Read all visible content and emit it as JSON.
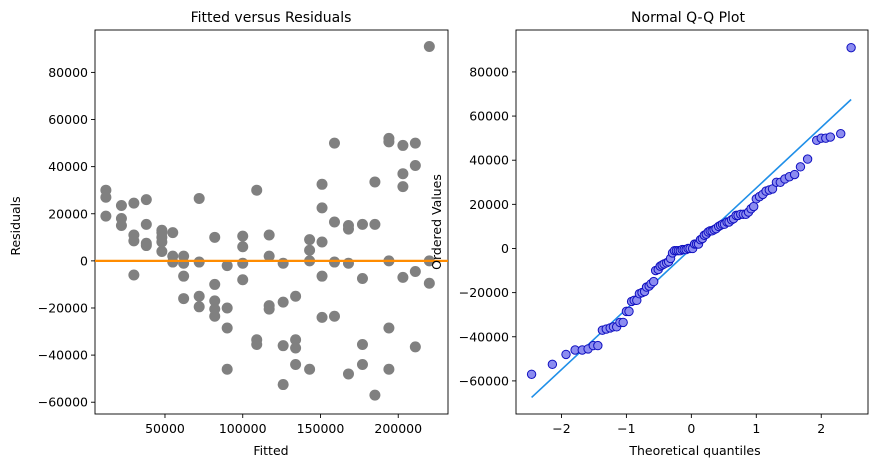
{
  "chart_data": [
    {
      "type": "scatter",
      "title": "Fitted versus Residuals",
      "xlabel": "Fitted",
      "ylabel": "Residuals",
      "xlim": [
        5000,
        232000
      ],
      "ylim": [
        -65000,
        98000
      ],
      "xticks": [
        50000,
        100000,
        150000,
        200000
      ],
      "xtick_labels": [
        "50000",
        "100000",
        "150000",
        "200000"
      ],
      "yticks": [
        -60000,
        -40000,
        -20000,
        0,
        20000,
        40000,
        60000,
        80000
      ],
      "ytick_labels": [
        "−60000",
        "−40000",
        "−20000",
        "0",
        "20000",
        "40000",
        "60000",
        "80000"
      ],
      "grid": false,
      "point_color": "#808080",
      "reference_line": {
        "y": 0,
        "color": "#ff8c00"
      },
      "points": [
        [
          12000,
          30000
        ],
        [
          12000,
          27000
        ],
        [
          12000,
          19000
        ],
        [
          22000,
          23500
        ],
        [
          22000,
          18000
        ],
        [
          22000,
          15000
        ],
        [
          30000,
          24500
        ],
        [
          30000,
          11000
        ],
        [
          30000,
          8500
        ],
        [
          30000,
          -6000
        ],
        [
          38000,
          26000
        ],
        [
          38000,
          15500
        ],
        [
          38000,
          7500
        ],
        [
          38000,
          6500
        ],
        [
          48000,
          13000
        ],
        [
          48000,
          12000
        ],
        [
          48000,
          10000
        ],
        [
          48000,
          8000
        ],
        [
          48000,
          4000
        ],
        [
          55000,
          12000
        ],
        [
          55000,
          2000
        ],
        [
          55000,
          -500
        ],
        [
          62000,
          2000
        ],
        [
          62000,
          -1000
        ],
        [
          62000,
          -6500
        ],
        [
          62000,
          -16000
        ],
        [
          72000,
          26500
        ],
        [
          72000,
          -500
        ],
        [
          72000,
          -15000
        ],
        [
          72000,
          -19500
        ],
        [
          82000,
          10000
        ],
        [
          82000,
          -10000
        ],
        [
          82000,
          -17000
        ],
        [
          82000,
          -20500
        ],
        [
          82000,
          -23500
        ],
        [
          90000,
          -2000
        ],
        [
          90000,
          -20000
        ],
        [
          90000,
          -28500
        ],
        [
          90000,
          -46000
        ],
        [
          100000,
          10500
        ],
        [
          100000,
          6000
        ],
        [
          100000,
          -1000
        ],
        [
          100000,
          -8000
        ],
        [
          109000,
          30000
        ],
        [
          109000,
          -33500
        ],
        [
          109000,
          -35500
        ],
        [
          117000,
          11000
        ],
        [
          117000,
          2000
        ],
        [
          117000,
          -19000
        ],
        [
          117000,
          -20500
        ],
        [
          126000,
          -1000
        ],
        [
          126000,
          -17500
        ],
        [
          126000,
          -36000
        ],
        [
          126000,
          -52500
        ],
        [
          134000,
          -15000
        ],
        [
          134000,
          -33500
        ],
        [
          134000,
          -37000
        ],
        [
          134000,
          -44000
        ],
        [
          143000,
          9000
        ],
        [
          143000,
          4500
        ],
        [
          143000,
          0
        ],
        [
          143000,
          -46000
        ],
        [
          151000,
          32500
        ],
        [
          151000,
          22500
        ],
        [
          151000,
          8000
        ],
        [
          151000,
          -6500
        ],
        [
          151000,
          -24000
        ],
        [
          159000,
          50000
        ],
        [
          159000,
          16500
        ],
        [
          159000,
          -500
        ],
        [
          159000,
          -23500
        ],
        [
          168000,
          15000
        ],
        [
          168000,
          13500
        ],
        [
          168000,
          -1000
        ],
        [
          168000,
          -48000
        ],
        [
          177000,
          15500
        ],
        [
          177000,
          -7500
        ],
        [
          177000,
          -35500
        ],
        [
          177000,
          -44000
        ],
        [
          185000,
          33500
        ],
        [
          185000,
          15500
        ],
        [
          185000,
          -57000
        ],
        [
          194000,
          52000
        ],
        [
          194000,
          50500
        ],
        [
          194000,
          0
        ],
        [
          194000,
          -28500
        ],
        [
          194000,
          -46000
        ],
        [
          203000,
          49000
        ],
        [
          203000,
          37000
        ],
        [
          203000,
          31500
        ],
        [
          203000,
          -7000
        ],
        [
          211000,
          50000
        ],
        [
          211000,
          40500
        ],
        [
          211000,
          -4500
        ],
        [
          211000,
          -36500
        ],
        [
          220000,
          91000
        ],
        [
          220000,
          0
        ],
        [
          220000,
          -9500
        ]
      ]
    },
    {
      "type": "scatter",
      "title": "Normal Q-Q Plot",
      "xlabel": "Theoretical quantiles",
      "ylabel": "Ordered Values",
      "xlim": [
        -2.7,
        2.72
      ],
      "ylim": [
        -75000,
        99000
      ],
      "xticks": [
        -2,
        -1,
        0,
        1,
        2
      ],
      "xtick_labels": [
        "−2",
        "−1",
        "0",
        "1",
        "2"
      ],
      "yticks": [
        -60000,
        -40000,
        -20000,
        0,
        20000,
        40000,
        60000,
        80000
      ],
      "ytick_labels": [
        "−60000",
        "−40000",
        "−20000",
        "0",
        "20000",
        "40000",
        "60000",
        "80000"
      ],
      "grid": false,
      "marker_face": "#8c8cf0",
      "marker_edge": "#1010c0",
      "fit_line": {
        "x": [
          -2.46,
          2.46
        ],
        "y": [
          -67500,
          67500
        ],
        "color": "#1f8fe8"
      },
      "points": [
        [
          -2.46,
          -57000
        ],
        [
          -2.14,
          -52500
        ],
        [
          -1.93,
          -48000
        ],
        [
          -1.79,
          -46000
        ],
        [
          -1.68,
          -46000
        ],
        [
          -1.59,
          -45500
        ],
        [
          -1.51,
          -44000
        ],
        [
          -1.44,
          -44000
        ],
        [
          -1.37,
          -37000
        ],
        [
          -1.31,
          -36500
        ],
        [
          -1.25,
          -36000
        ],
        [
          -1.2,
          -35500
        ],
        [
          -1.15,
          -35500
        ],
        [
          -1.1,
          -33500
        ],
        [
          -1.05,
          -33500
        ],
        [
          -1.0,
          -28500
        ],
        [
          -0.96,
          -28500
        ],
        [
          -0.92,
          -24000
        ],
        [
          -0.88,
          -23500
        ],
        [
          -0.84,
          -23500
        ],
        [
          -0.8,
          -20500
        ],
        [
          -0.76,
          -20000
        ],
        [
          -0.72,
          -19500
        ],
        [
          -0.69,
          -17500
        ],
        [
          -0.65,
          -17000
        ],
        [
          -0.62,
          -16000
        ],
        [
          -0.58,
          -15000
        ],
        [
          -0.55,
          -10000
        ],
        [
          -0.51,
          -9500
        ],
        [
          -0.48,
          -8000
        ],
        [
          -0.45,
          -7500
        ],
        [
          -0.42,
          -7000
        ],
        [
          -0.38,
          -6500
        ],
        [
          -0.35,
          -6000
        ],
        [
          -0.32,
          -4500
        ],
        [
          -0.29,
          -2000
        ],
        [
          -0.26,
          -1000
        ],
        [
          -0.23,
          -1000
        ],
        [
          -0.2,
          -1000
        ],
        [
          -0.17,
          -1000
        ],
        [
          -0.14,
          -500
        ],
        [
          -0.11,
          -500
        ],
        [
          -0.08,
          -500
        ],
        [
          -0.05,
          0
        ],
        [
          -0.02,
          0
        ],
        [
          0.02,
          0
        ],
        [
          0.05,
          2000
        ],
        [
          0.08,
          2000
        ],
        [
          0.11,
          2000
        ],
        [
          0.14,
          4000
        ],
        [
          0.17,
          4500
        ],
        [
          0.2,
          6000
        ],
        [
          0.23,
          6500
        ],
        [
          0.26,
          7500
        ],
        [
          0.29,
          8000
        ],
        [
          0.32,
          8000
        ],
        [
          0.35,
          8500
        ],
        [
          0.38,
          9000
        ],
        [
          0.42,
          10000
        ],
        [
          0.45,
          10500
        ],
        [
          0.48,
          11000
        ],
        [
          0.51,
          11000
        ],
        [
          0.55,
          12000
        ],
        [
          0.58,
          12000
        ],
        [
          0.62,
          13000
        ],
        [
          0.65,
          13500
        ],
        [
          0.69,
          15000
        ],
        [
          0.72,
          15000
        ],
        [
          0.76,
          15500
        ],
        [
          0.8,
          15500
        ],
        [
          0.84,
          15500
        ],
        [
          0.88,
          16500
        ],
        [
          0.92,
          18000
        ],
        [
          0.96,
          19000
        ],
        [
          1.0,
          22500
        ],
        [
          1.05,
          23500
        ],
        [
          1.1,
          24500
        ],
        [
          1.15,
          26000
        ],
        [
          1.2,
          26500
        ],
        [
          1.25,
          27000
        ],
        [
          1.31,
          30000
        ],
        [
          1.37,
          30000
        ],
        [
          1.44,
          31500
        ],
        [
          1.51,
          32500
        ],
        [
          1.59,
          33500
        ],
        [
          1.68,
          37000
        ],
        [
          1.79,
          40500
        ],
        [
          1.93,
          49000
        ],
        [
          2.0,
          50000
        ],
        [
          2.07,
          50000
        ],
        [
          2.14,
          50500
        ],
        [
          2.3,
          52000
        ],
        [
          2.46,
          91000
        ]
      ]
    }
  ]
}
